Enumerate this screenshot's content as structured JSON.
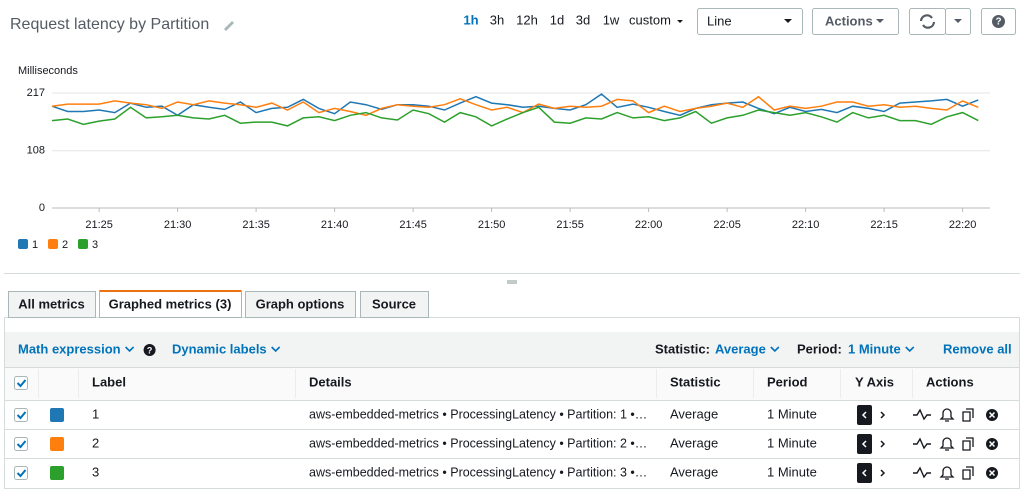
{
  "header": {
    "title": "Request latency by Partition",
    "time_ranges": [
      "1h",
      "3h",
      "12h",
      "1d",
      "3d",
      "1w",
      "custom"
    ],
    "view": "Line",
    "actions": "Actions"
  },
  "chart_data": {
    "type": "line",
    "y_label": "Milliseconds",
    "x": [
      "21:22",
      "21:23",
      "21:24",
      "21:25",
      "21:26",
      "21:27",
      "21:28",
      "21:29",
      "21:30",
      "21:31",
      "21:32",
      "21:33",
      "21:34",
      "21:35",
      "21:36",
      "21:37",
      "21:38",
      "21:39",
      "21:40",
      "21:41",
      "21:42",
      "21:43",
      "21:44",
      "21:45",
      "21:46",
      "21:47",
      "21:48",
      "21:49",
      "21:50",
      "21:51",
      "21:52",
      "21:53",
      "21:54",
      "21:55",
      "21:56",
      "21:57",
      "21:58",
      "21:59",
      "22:00",
      "22:01",
      "22:02",
      "22:03",
      "22:04",
      "22:05",
      "22:06",
      "22:07",
      "22:08",
      "22:09",
      "22:10",
      "22:11",
      "22:12",
      "22:13",
      "22:14",
      "22:15",
      "22:16",
      "22:17",
      "22:18",
      "22:19",
      "22:20",
      "22:21"
    ],
    "xticks": [
      "21:25",
      "21:30",
      "21:35",
      "21:40",
      "21:45",
      "21:50",
      "21:55",
      "22:00",
      "22:05",
      "22:10",
      "22:15",
      "22:20"
    ],
    "ylim": [
      0,
      217
    ],
    "yticks": [
      0,
      108,
      217
    ],
    "grid": true,
    "legend": "bottom-left",
    "series": [
      {
        "name": "1",
        "color": "#1f77b4",
        "values": [
          192,
          182,
          182,
          185,
          180,
          198,
          190,
          192,
          175,
          195,
          190,
          186,
          200,
          180,
          188,
          190,
          205,
          188,
          178,
          200,
          195,
          186,
          195,
          195,
          192,
          185,
          198,
          210,
          198,
          195,
          190,
          192,
          188,
          185,
          195,
          215,
          190,
          196,
          190,
          182,
          175,
          188,
          195,
          198,
          200,
          188,
          178,
          190,
          182,
          186,
          180,
          192,
          188,
          182,
          198,
          200,
          202,
          205,
          192,
          204
        ]
      },
      {
        "name": "2",
        "color": "#ff7f0e",
        "values": [
          192,
          196,
          196,
          196,
          202,
          198,
          195,
          188,
          200,
          195,
          202,
          198,
          195,
          190,
          198,
          185,
          200,
          180,
          188,
          182,
          175,
          188,
          195,
          192,
          190,
          195,
          206,
          195,
          185,
          190,
          180,
          196,
          188,
          192,
          190,
          192,
          205,
          202,
          180,
          192,
          182,
          188,
          192,
          198,
          190,
          210,
          185,
          192,
          188,
          192,
          200,
          200,
          192,
          195,
          190,
          192,
          188,
          185,
          202,
          190
        ]
      },
      {
        "name": "3",
        "color": "#2ca02c",
        "values": [
          165,
          168,
          158,
          164,
          168,
          190,
          170,
          172,
          175,
          170,
          168,
          175,
          160,
          162,
          162,
          155,
          170,
          172,
          165,
          175,
          180,
          170,
          166,
          185,
          178,
          162,
          180,
          172,
          155,
          168,
          180,
          190,
          162,
          160,
          170,
          168,
          180,
          170,
          172,
          165,
          170,
          182,
          160,
          170,
          175,
          185,
          180,
          175,
          180,
          172,
          162,
          180,
          170,
          175,
          165,
          165,
          158,
          172,
          180,
          165
        ]
      }
    ]
  },
  "tabs": [
    "All metrics",
    "Graphed metrics (3)",
    "Graph options",
    "Source"
  ],
  "toolbar": {
    "math_expression": "Math expression",
    "dynamic_labels": "Dynamic labels",
    "statistic_label": "Statistic:",
    "statistic": "Average",
    "period_label": "Period:",
    "period": "1 Minute",
    "remove_all": "Remove all"
  },
  "table": {
    "columns": [
      "Label",
      "Details",
      "Statistic",
      "Period",
      "Y Axis",
      "Actions"
    ],
    "rows": [
      [
        "1",
        "aws-embedded-metrics • ProcessingLatency • Partition: 1 •…",
        "Average",
        "1 Minute"
      ],
      [
        "2",
        "aws-embedded-metrics • ProcessingLatency • Partition: 2 •…",
        "Average",
        "1 Minute"
      ],
      [
        "3",
        "aws-embedded-metrics • ProcessingLatency • Partition: 3 •…",
        "Average",
        "1 Minute"
      ]
    ]
  }
}
